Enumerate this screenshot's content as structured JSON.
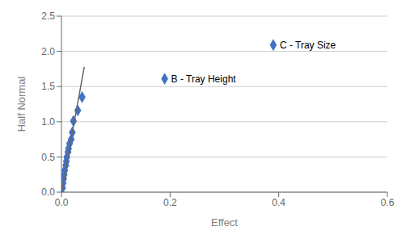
{
  "chart_data": {
    "type": "scatter",
    "xlabel": "Effect",
    "ylabel": "Half Normal",
    "xlim": [
      0,
      0.6
    ],
    "ylim": [
      0,
      2.5
    ],
    "xticks": [
      {
        "value": 0,
        "label": "0.0"
      },
      0.2,
      0.4,
      0.6
    ],
    "yticks": [
      {
        "value": 0,
        "label": "0.0"
      },
      0.5,
      {
        "value": 1,
        "label": "1.0"
      },
      1.5,
      {
        "value": 2,
        "label": "2.0"
      },
      2.5
    ],
    "grid": "y",
    "series": [
      {
        "type": "scatter",
        "color": "#4472C4",
        "marker": "diamond",
        "x": [
          0.002,
          0.003,
          0.004,
          0.005,
          0.006,
          0.008,
          0.009,
          0.01,
          0.012,
          0.013,
          0.015,
          0.018,
          0.02,
          0.022,
          0.03,
          0.038,
          0.19,
          0.39
        ],
        "values": [
          0.06,
          0.13,
          0.19,
          0.25,
          0.31,
          0.38,
          0.44,
          0.5,
          0.57,
          0.62,
          0.69,
          0.75,
          0.85,
          1.01,
          1.16,
          1.35,
          1.61,
          2.09
        ]
      },
      {
        "type": "line",
        "color": "#666666",
        "x": [
          0.0,
          0.042
        ],
        "values": [
          0.0,
          1.78
        ]
      }
    ],
    "annotations": [
      {
        "x": 0.19,
        "y": 1.61,
        "text": "B - Tray Height"
      },
      {
        "x": 0.39,
        "y": 2.09,
        "text": "C - Tray Size"
      }
    ]
  }
}
